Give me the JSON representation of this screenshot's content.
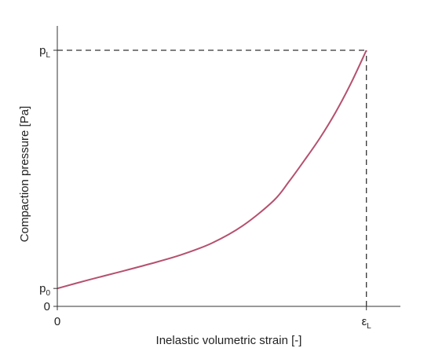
{
  "chart_data": {
    "type": "line",
    "title": "",
    "xlabel": "Inelastic volumetric strain [-]",
    "ylabel": "Compaction pressure [Pa]",
    "x_ticks": [
      {
        "base": "0",
        "sub": ""
      },
      {
        "base": "ε",
        "sub": "L"
      }
    ],
    "y_ticks": [
      {
        "base": "0",
        "sub": ""
      },
      {
        "base": "p",
        "sub": "0"
      },
      {
        "base": "p",
        "sub": "L"
      }
    ],
    "xlim": [
      0,
      1.11
    ],
    "ylim": [
      0,
      1.0
    ],
    "grid": false,
    "series": [
      {
        "name": "",
        "color": "#b5506e",
        "x": [
          0,
          0.1,
          0.2,
          0.3,
          0.4,
          0.5,
          0.6,
          0.7,
          0.75,
          0.8,
          0.85,
          0.9,
          0.95,
          1.0
        ],
        "y": [
          0.07,
          0.103,
          0.134,
          0.166,
          0.201,
          0.247,
          0.315,
          0.413,
          0.488,
          0.571,
          0.658,
          0.757,
          0.871,
          1.0
        ]
      }
    ],
    "reference_lines": [
      {
        "type": "horizontal",
        "y": 1.0,
        "x_from": 0,
        "x_to": 1.0,
        "style": "dashed",
        "color": "#333333"
      },
      {
        "type": "vertical",
        "x": 1.0,
        "y_from": 0,
        "y_to": 1.0,
        "style": "dashed",
        "color": "#333333"
      }
    ]
  }
}
